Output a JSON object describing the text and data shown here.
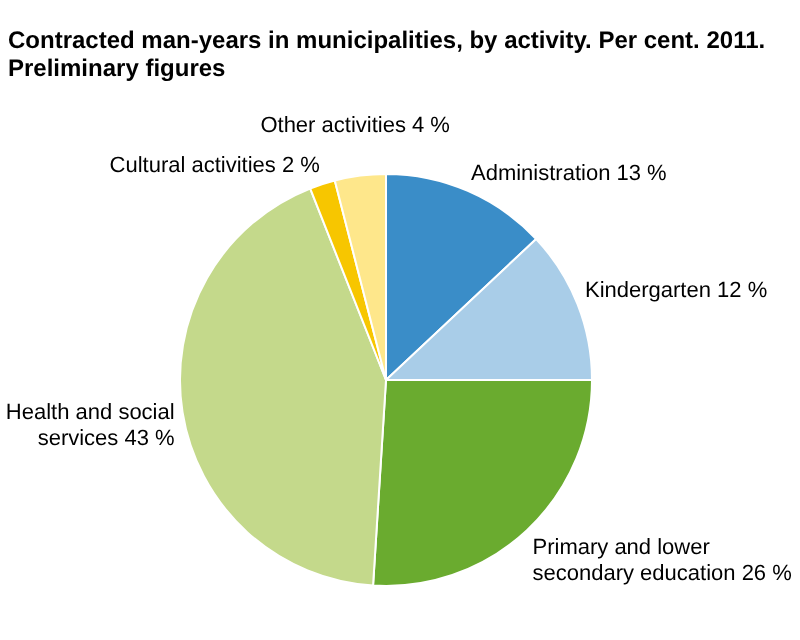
{
  "chart_data": {
    "type": "pie",
    "title": "Contracted man-years in municipalities, by activity. Per cent. 2011. Preliminary figures",
    "categories": [
      "Administration",
      "Kindergarten",
      "Primary and lower secondary education",
      "Health and social services",
      "Cultural activities",
      "Other activities"
    ],
    "values": [
      13,
      12,
      26,
      43,
      2,
      4
    ],
    "value_labels": [
      "13 %",
      "12 %",
      "26 %",
      "43 %",
      "2 %",
      "4 %"
    ],
    "colors": [
      "#3a8dc8",
      "#a9cde8",
      "#6aab2f",
      "#c4d98b",
      "#f7c600",
      "#fee78b"
    ]
  }
}
